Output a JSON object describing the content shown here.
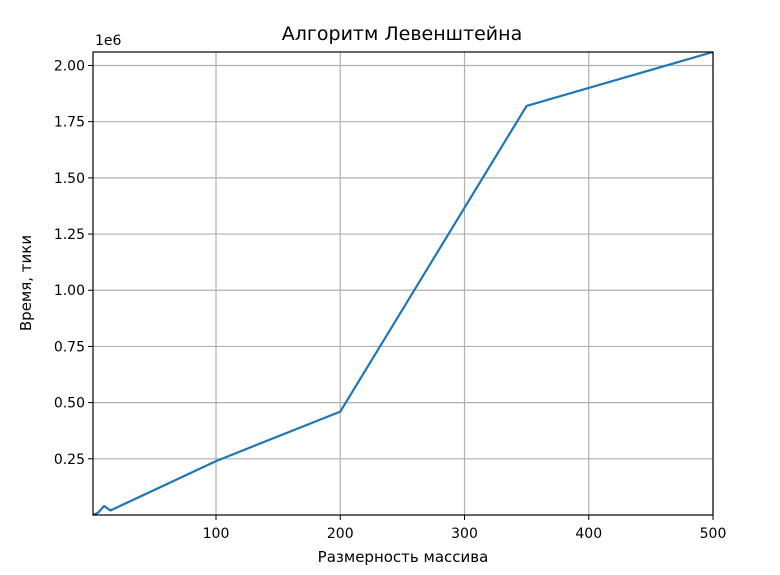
{
  "chart_data": {
    "type": "line",
    "title": "Алгоритм Левенштейна",
    "xlabel": "Размерность массива",
    "ylabel": "Время, тики",
    "y_scale_label": "1e6",
    "xlim": [
      1,
      500
    ],
    "ylim": [
      0,
      2.06
    ],
    "x_ticks": [
      100,
      200,
      300,
      400,
      500
    ],
    "x_tick_labels": [
      "100",
      "200",
      "300",
      "400",
      "500"
    ],
    "y_ticks": [
      0.25,
      0.5,
      0.75,
      1.0,
      1.25,
      1.5,
      1.75,
      2.0
    ],
    "y_tick_labels": [
      "0.25",
      "0.50",
      "0.75",
      "1.00",
      "1.25",
      "1.50",
      "1.75",
      "2.00"
    ],
    "grid": true,
    "series": [
      {
        "color": "#1f77b4",
        "x": [
          1,
          5,
          10,
          15,
          100,
          200,
          350,
          500
        ],
        "y": [
          0.0,
          0.01,
          0.04,
          0.02,
          0.24,
          0.46,
          1.82,
          2.06
        ]
      }
    ]
  }
}
